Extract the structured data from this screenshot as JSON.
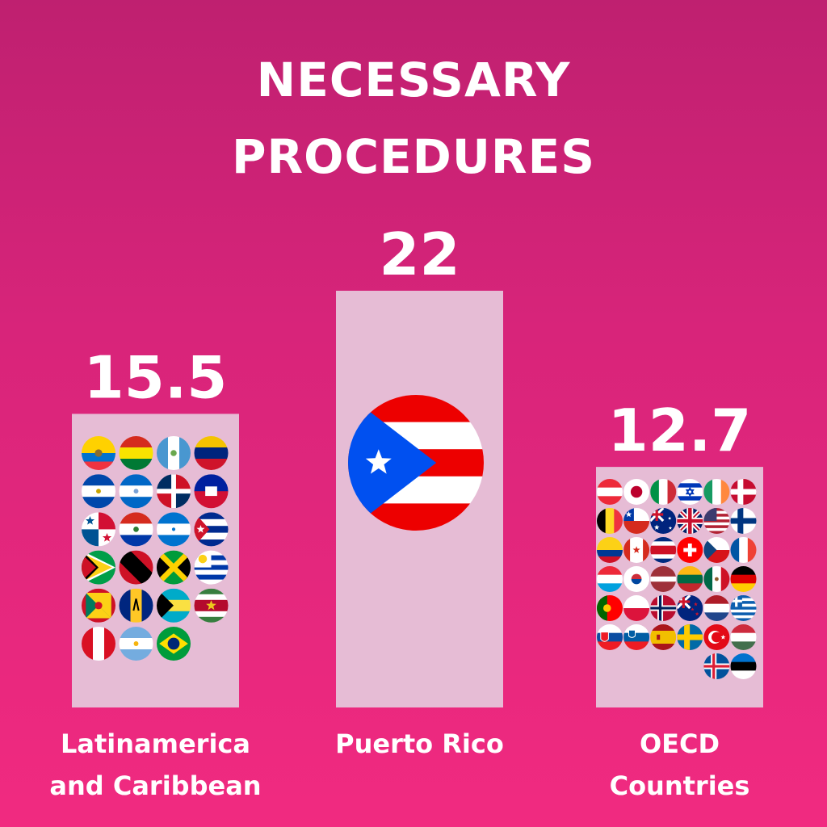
{
  "chart_data": {
    "type": "bar",
    "title": [
      "NECESSARY",
      "PROCEDURES"
    ],
    "categories": [
      "Latinamerica and Caribbean",
      "Puerto Rico",
      "OECD Countries"
    ],
    "category_lines": [
      [
        "Latinamerica",
        "and Caribbean"
      ],
      [
        "Puerto Rico"
      ],
      [
        "OECD",
        "Countries"
      ]
    ],
    "values": [
      15.5,
      22,
      12.7
    ],
    "value_labels": [
      "15.5",
      "22",
      "12.7"
    ],
    "ylim": [
      0,
      22
    ],
    "grid": false,
    "legend": "none",
    "bar_color": "#e6bcd5",
    "background": [
      "#bf2070",
      "#f12a80"
    ],
    "flag_icons": [
      [
        "ecuador-flag-icon",
        "bolivia-flag-icon",
        "guatemala-flag-icon",
        "venezuela-flag-icon",
        "el-salvador-flag-icon",
        "nicaragua-flag-icon",
        "dominican-republic-flag-icon",
        "haiti-flag-icon",
        "panama-flag-icon",
        "paraguay-flag-icon",
        "honduras-flag-icon",
        "cuba-flag-icon",
        "guyana-flag-icon",
        "trinidad-and-tobago-flag-icon",
        "jamaica-flag-icon",
        "uruguay-flag-icon",
        "grenada-flag-icon",
        "barbados-flag-icon",
        "bahamas-flag-icon",
        "suriname-flag-icon",
        "peru-flag-icon",
        "argentina-flag-icon",
        "brazil-flag-icon"
      ],
      [
        "puerto-rico-flag-icon"
      ],
      [
        "austria-flag-icon",
        "japan-flag-icon",
        "italy-flag-icon",
        "israel-flag-icon",
        "ireland-flag-icon",
        "denmark-flag-icon",
        "belgium-flag-icon",
        "chile-flag-icon",
        "australia-flag-icon",
        "united-kingdom-flag-icon",
        "united-states-flag-icon",
        "finland-flag-icon",
        "colombia-flag-icon",
        "canada-flag-icon",
        "costa-rica-flag-icon",
        "switzerland-flag-icon",
        "czech-republic-flag-icon",
        "france-flag-icon",
        "luxembourg-flag-icon",
        "south-korea-flag-icon",
        "latvia-flag-icon",
        "lithuania-flag-icon",
        "mexico-flag-icon",
        "germany-flag-icon",
        "portugal-flag-icon",
        "poland-flag-icon",
        "norway-flag-icon",
        "new-zealand-flag-icon",
        "netherlands-flag-icon",
        "greece-flag-icon",
        "slovakia-flag-icon",
        "slovenia-flag-icon",
        "spain-flag-icon",
        "sweden-flag-icon",
        "turkey-flag-icon",
        "hungary-flag-icon",
        "iceland-flag-icon",
        "estonia-flag-icon"
      ]
    ]
  }
}
